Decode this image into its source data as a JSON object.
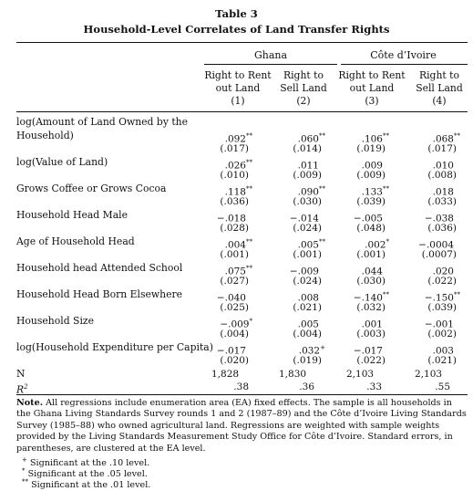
{
  "table": {
    "label": "Table 3",
    "title": "Household-Level Correlates of Land Transfer Rights",
    "groups": [
      "Ghana",
      "Côte d’Ivoire"
    ],
    "columns": [
      {
        "l1": "Right to Rent",
        "l2": "out Land",
        "num": "(1)"
      },
      {
        "l1": "Right to",
        "l2": "Sell Land",
        "num": "(2)"
      },
      {
        "l1": "Right to Rent",
        "l2": "out Land",
        "num": "(3)"
      },
      {
        "l1": "Right to",
        "l2": "Sell Land",
        "num": "(4)"
      }
    ],
    "rows": [
      {
        "label1": "log(Amount of Land Owned by the",
        "label2": "Household)",
        "coef": [
          ".092**",
          ".060**",
          ".106**",
          ".068**"
        ],
        "se": [
          "(.017)",
          "(.014)",
          "(.019)",
          "(.017)"
        ]
      },
      {
        "label1": "log(Value of Land)",
        "coef": [
          ".026**",
          ".011",
          ".009",
          ".010"
        ],
        "se": [
          "(.010)",
          "(.009)",
          "(.009)",
          "(.008)"
        ]
      },
      {
        "label1": "Grows Coffee or Grows Cocoa",
        "coef": [
          ".118**",
          ".090**",
          ".133**",
          ".018"
        ],
        "se": [
          "(.036)",
          "(.030)",
          "(.039)",
          "(.033)"
        ]
      },
      {
        "label1": "Household Head Male",
        "coef": [
          "−.018",
          "−.014",
          "−.005",
          "−.038"
        ],
        "se": [
          "(.028)",
          "(.024)",
          "(.048)",
          "(.036)"
        ]
      },
      {
        "label1": "Age of Household Head",
        "coef": [
          ".004**",
          ".005**",
          ".002*",
          "−.0004"
        ],
        "se": [
          "(.001)",
          "(.001)",
          "(.001)",
          "(.0007)"
        ]
      },
      {
        "label1": "Household head Attended School",
        "coef": [
          ".075**",
          "−.009",
          ".044",
          ".020"
        ],
        "se": [
          "(.027)",
          "(.024)",
          "(.030)",
          "(.022)"
        ]
      },
      {
        "label1": "Household Head Born Elsewhere",
        "coef": [
          "−.040",
          ".008",
          "−.140**",
          "−.150**"
        ],
        "se": [
          "(.025)",
          "(.021)",
          "(.032)",
          "(.039)"
        ]
      },
      {
        "label1": "Household Size",
        "coef": [
          "−.009*",
          ".005",
          ".001",
          "−.001"
        ],
        "se": [
          "(.004)",
          "(.004)",
          "(.003)",
          "(.002)"
        ]
      },
      {
        "label1": "log(Household Expenditure per Capita)",
        "coef": [
          "−.017",
          ".032+",
          "−.017",
          ".003"
        ],
        "se": [
          "(.020)",
          "(.019)",
          "(.022)",
          "(.021)"
        ]
      }
    ],
    "n_label": "N",
    "n_values": [
      "1,828",
      "1,830",
      "2,103",
      "2,103"
    ],
    "r2_label": "R",
    "r2_sup": "2",
    "r2_values": [
      ".38",
      ".36",
      ".33",
      ".55"
    ],
    "note_label": "Note.",
    "note_text": "All regressions include enumeration area (EA) fixed effects. The sample is all households in the Ghana Living Standards Survey rounds 1 and 2 (1987–89) and the Côte d’Ivoire Living Standards Survey (1985–88) who owned agricultural land. Regressions are weighted with sample weights provided by the Living Standards Measurement Study Office for Côte d’Ivoire. Standard errors, in parentheses, are clustered at the EA level.",
    "footnotes": [
      {
        "sym": "+",
        "text": "Significant at the .10 level."
      },
      {
        "sym": "*",
        "text": "Significant at the .05 level."
      },
      {
        "sym": "**",
        "text": "Significant at the .01 level."
      }
    ]
  }
}
